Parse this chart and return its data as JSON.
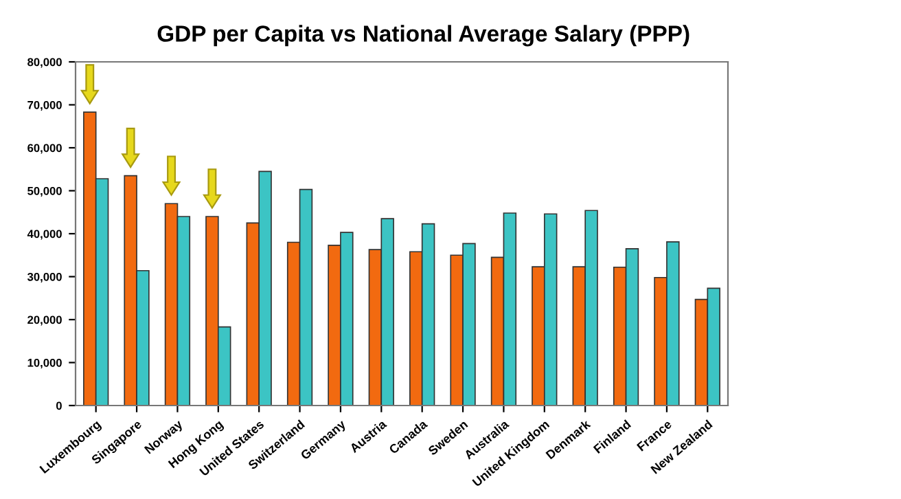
{
  "chart_data": {
    "type": "bar",
    "title": "GDP per Capita vs National Average Salary (PPP)",
    "categories": [
      "Luxembourg",
      "Singapore",
      "Norway",
      "Hong Kong",
      "United States",
      "Switzerland",
      "Germany",
      "Austria",
      "Canada",
      "Sweden",
      "Australia",
      "United Kingdom",
      "Denmark",
      "Finland",
      "France",
      "New Zealand"
    ],
    "series": [
      {
        "color": "#f26a10",
        "values": [
          68300,
          53500,
          47000,
          44000,
          42500,
          38000,
          37300,
          36300,
          35800,
          35000,
          34500,
          32300,
          32300,
          32200,
          29800,
          24700
        ]
      },
      {
        "color": "#3cc4c4",
        "values": [
          52800,
          31400,
          44000,
          18300,
          54500,
          50300,
          40300,
          43500,
          42300,
          37700,
          44800,
          44600,
          45400,
          36500,
          38100,
          27300
        ]
      }
    ],
    "ylim": [
      0,
      80000
    ],
    "yticks": [
      {
        "value": 0,
        "label": "0"
      },
      {
        "value": 10000,
        "label": "10,000"
      },
      {
        "value": 20000,
        "label": "20,000"
      },
      {
        "value": 30000,
        "label": "30,000"
      },
      {
        "value": 40000,
        "label": "40,000"
      },
      {
        "value": 50000,
        "label": "50,000"
      },
      {
        "value": 60000,
        "label": "60,000"
      },
      {
        "value": 70000,
        "label": "70,000"
      },
      {
        "value": 80000,
        "label": "80,000"
      }
    ],
    "grid": false,
    "legend": false
  }
}
